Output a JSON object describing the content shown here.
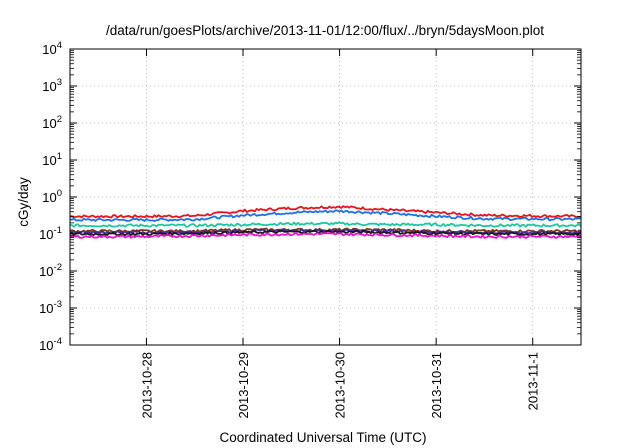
{
  "chart_data": {
    "type": "line",
    "title": "/data/run/goesPlots/archive/2013-11-01/12:00/flux/../bryn/5daysMoon.plot",
    "xlabel": "Coordinated Universal Time (UTC)",
    "ylabel": "cGy/day",
    "y_scale": "log",
    "ylim_exp": [
      -4,
      4
    ],
    "y_tick_base": "10",
    "y_tick_exponents": [
      "-4",
      "-3",
      "-2",
      "-1",
      "0",
      "1",
      "2",
      "3",
      "4"
    ],
    "xlim": [
      "2013-10-27T05:00",
      "2013-11-01T12:00"
    ],
    "x_ticks": [
      {
        "label": "2013-10-28",
        "time": "2013-10-28T00:00"
      },
      {
        "label": "2013-10-29",
        "time": "2013-10-29T00:00"
      },
      {
        "label": "2013-10-30",
        "time": "2013-10-30T00:00"
      },
      {
        "label": "2013-10-31",
        "time": "2013-10-31T00:00"
      },
      {
        "label": "2013-11-1",
        "time": "2013-11-01T00:00"
      }
    ],
    "grid": true,
    "series_times": [
      "2013-10-27T05:00",
      "2013-10-28T00:00",
      "2013-10-28T12:00",
      "2013-10-29T00:00",
      "2013-10-29T12:00",
      "2013-10-30T00:00",
      "2013-10-30T12:00",
      "2013-10-31T00:00",
      "2013-10-31T12:00",
      "2013-11-01T12:00"
    ],
    "series": [
      {
        "color": "#e8141b",
        "values": [
          0.3,
          0.3,
          0.31,
          0.42,
          0.5,
          0.55,
          0.45,
          0.38,
          0.32,
          0.3
        ]
      },
      {
        "color": "#1e6fe8",
        "values": [
          0.24,
          0.24,
          0.25,
          0.32,
          0.38,
          0.42,
          0.36,
          0.3,
          0.26,
          0.25
        ]
      },
      {
        "color": "#1ec6a0",
        "values": [
          0.17,
          0.17,
          0.17,
          0.18,
          0.19,
          0.19,
          0.18,
          0.18,
          0.17,
          0.17
        ]
      },
      {
        "color": "#7a3a1a",
        "values": [
          0.12,
          0.12,
          0.12,
          0.13,
          0.13,
          0.13,
          0.13,
          0.12,
          0.12,
          0.12
        ]
      },
      {
        "color": "#4a2a9a",
        "values": [
          0.11,
          0.11,
          0.115,
          0.12,
          0.125,
          0.125,
          0.12,
          0.115,
          0.11,
          0.11
        ]
      },
      {
        "color": "#1a1a1a",
        "values": [
          0.1,
          0.1,
          0.105,
          0.11,
          0.115,
          0.115,
          0.11,
          0.105,
          0.1,
          0.1
        ]
      },
      {
        "color": "#ee10d0",
        "values": [
          0.085,
          0.085,
          0.09,
          0.095,
          0.1,
          0.1,
          0.095,
          0.09,
          0.085,
          0.085
        ]
      }
    ]
  }
}
